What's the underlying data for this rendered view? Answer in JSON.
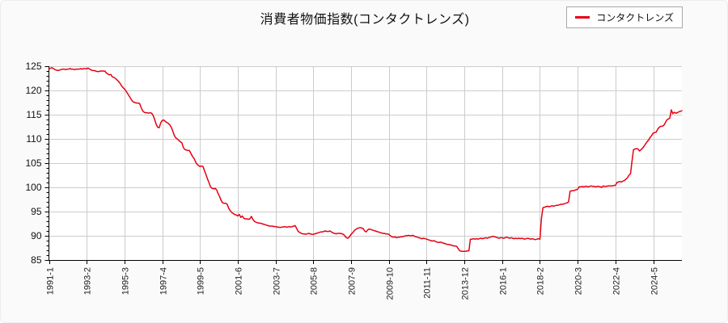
{
  "header": {
    "title": "消費者物価指数(コンタクトレンズ)"
  },
  "legend": {
    "label": "コンタクトレンズ",
    "color": "#e60012"
  },
  "chart_data": {
    "type": "line",
    "title": "消費者物価指数(コンタクトレンズ)",
    "xlabel": "",
    "ylabel": "",
    "ylim": [
      85,
      125
    ],
    "y_ticks": [
      85,
      90,
      95,
      100,
      105,
      110,
      115,
      120,
      125
    ],
    "y_minor_step": 1,
    "grid": true,
    "grid_color": "#cccccc",
    "axis_color": "#000000",
    "legend_position": "top-right",
    "x_start": "1991-01",
    "x_frequency": "monthly",
    "x_tick_interval_months": 25,
    "x_tick_labels": [
      "1991-1",
      "1993-2",
      "1995-3",
      "1997-4",
      "1999-5",
      "2001-6",
      "2003-7",
      "2005-8",
      "2007-9",
      "2009-10",
      "2011-11",
      "2013-12",
      "2016-1",
      "2018-2",
      "2020-3",
      "2022-4",
      "2024-5"
    ],
    "series": [
      {
        "name": "コンタクトレンズ",
        "color": "#e60012",
        "values": [
          124.4,
          124.6,
          124.7,
          124.5,
          124.3,
          124.2,
          124.1,
          124.2,
          124.3,
          124.4,
          124.4,
          124.3,
          124.4,
          124.4,
          124.5,
          124.4,
          124.4,
          124.3,
          124.4,
          124.4,
          124.4,
          124.5,
          124.4,
          124.5,
          124.5,
          124.5,
          124.6,
          124.4,
          124.2,
          124.1,
          124.1,
          124.0,
          123.9,
          123.9,
          124.0,
          124.0,
          124.0,
          124.0,
          123.6,
          123.4,
          123.2,
          123.3,
          122.8,
          122.7,
          122.5,
          122.2,
          121.9,
          121.5,
          121.0,
          120.6,
          120.3,
          119.9,
          119.4,
          118.9,
          118.4,
          117.9,
          117.6,
          117.5,
          117.4,
          117.4,
          117.3,
          116.5,
          115.8,
          115.5,
          115.4,
          115.4,
          115.3,
          115.4,
          115.3,
          114.8,
          114.0,
          113.0,
          112.4,
          112.3,
          113.3,
          113.8,
          113.9,
          113.6,
          113.4,
          113.2,
          112.9,
          112.4,
          111.6,
          110.7,
          110.2,
          110.0,
          109.7,
          109.4,
          109.2,
          108.2,
          107.8,
          107.7,
          107.6,
          107.6,
          107.0,
          106.4,
          106.0,
          105.3,
          104.8,
          104.5,
          104.3,
          104.4,
          104.3,
          103.4,
          102.6,
          101.7,
          100.9,
          100.1,
          99.8,
          99.7,
          99.8,
          99.5,
          98.7,
          98.1,
          97.3,
          96.8,
          96.7,
          96.7,
          96.5,
          95.7,
          95.2,
          94.8,
          94.6,
          94.4,
          94.3,
          94.1,
          94.4,
          93.8,
          94.1,
          93.6,
          93.5,
          93.5,
          93.4,
          93.5,
          94.0,
          93.4,
          93.0,
          92.8,
          92.7,
          92.6,
          92.6,
          92.5,
          92.4,
          92.3,
          92.2,
          92.1,
          92.0,
          92.0,
          92.0,
          91.9,
          91.9,
          91.8,
          91.8,
          91.7,
          91.8,
          91.8,
          91.9,
          91.8,
          91.8,
          91.9,
          91.8,
          91.9,
          92.0,
          92.1,
          91.5,
          90.9,
          90.7,
          90.5,
          90.4,
          90.4,
          90.3,
          90.4,
          90.5,
          90.4,
          90.3,
          90.3,
          90.4,
          90.5,
          90.6,
          90.7,
          90.8,
          90.8,
          90.9,
          91.0,
          90.9,
          90.9,
          91.0,
          90.8,
          90.6,
          90.5,
          90.4,
          90.5,
          90.5,
          90.5,
          90.4,
          90.3,
          89.9,
          89.6,
          89.5,
          89.8,
          90.3,
          90.6,
          91.0,
          91.3,
          91.5,
          91.6,
          91.7,
          91.6,
          91.5,
          91.0,
          90.8,
          91.2,
          91.4,
          91.3,
          91.2,
          91.1,
          91.0,
          90.9,
          90.8,
          90.7,
          90.6,
          90.5,
          90.5,
          90.4,
          90.4,
          90.3,
          90.0,
          89.8,
          89.7,
          89.8,
          89.6,
          89.7,
          89.7,
          89.8,
          89.8,
          89.9,
          90.0,
          90.0,
          90.1,
          90.0,
          90.0,
          90.1,
          89.9,
          89.8,
          89.7,
          89.6,
          89.5,
          89.4,
          89.5,
          89.4,
          89.3,
          89.2,
          89.1,
          89.0,
          88.9,
          89.0,
          88.8,
          88.7,
          88.6,
          88.7,
          88.6,
          88.5,
          88.4,
          88.3,
          88.2,
          88.2,
          88.1,
          88.0,
          87.9,
          87.9,
          87.8,
          87.3,
          86.9,
          86.8,
          86.8,
          86.8,
          86.8,
          86.9,
          86.9,
          89.3,
          89.3,
          89.4,
          89.3,
          89.4,
          89.3,
          89.4,
          89.5,
          89.4,
          89.5,
          89.6,
          89.5,
          89.6,
          89.7,
          89.8,
          89.9,
          89.8,
          89.7,
          89.6,
          89.5,
          89.6,
          89.6,
          89.5,
          89.6,
          89.7,
          89.6,
          89.5,
          89.6,
          89.5,
          89.4,
          89.5,
          89.4,
          89.5,
          89.4,
          89.5,
          89.4,
          89.3,
          89.4,
          89.5,
          89.4,
          89.3,
          89.4,
          89.3,
          89.2,
          89.3,
          89.4,
          89.3,
          93.5,
          95.8,
          95.9,
          96.0,
          96.1,
          96.0,
          96.1,
          96.2,
          96.1,
          96.2,
          96.3,
          96.3,
          96.4,
          96.5,
          96.5,
          96.6,
          96.7,
          96.8,
          97.0,
          99.2,
          99.3,
          99.3,
          99.4,
          99.5,
          99.6,
          100.1,
          100.1,
          100.2,
          100.1,
          100.2,
          100.2,
          100.1,
          100.2,
          100.3,
          100.2,
          100.2,
          100.1,
          100.2,
          100.2,
          100.1,
          100.0,
          100.3,
          100.2,
          100.2,
          100.3,
          100.3,
          100.3,
          100.3,
          100.4,
          100.4,
          101.0,
          101.1,
          101.2,
          101.1,
          101.3,
          101.4,
          101.7,
          102.0,
          102.5,
          102.8,
          105.5,
          107.8,
          107.9,
          108.0,
          107.9,
          107.5,
          107.8,
          108.1,
          108.5,
          109.0,
          109.4,
          109.8,
          110.3,
          110.7,
          111.2,
          111.3,
          111.4,
          112.0,
          112.4,
          112.6,
          112.6,
          112.8,
          113.3,
          113.9,
          114.1,
          114.3,
          116.0,
          115.2,
          115.5,
          115.3,
          115.4,
          115.6,
          115.7,
          115.8
        ]
      }
    ]
  }
}
